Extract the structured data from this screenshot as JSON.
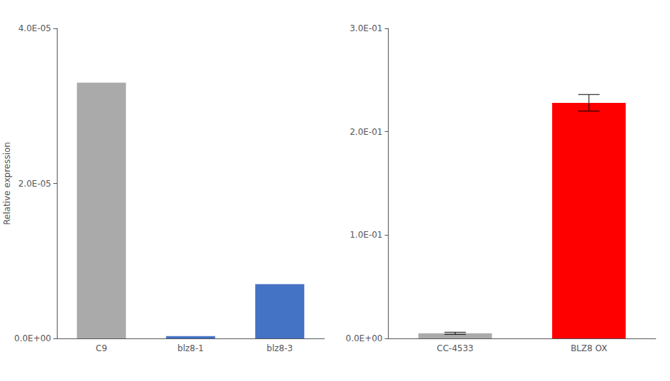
{
  "chart_data": [
    {
      "type": "bar",
      "categories": [
        "C9",
        "blz8-1",
        "blz8-3"
      ],
      "values": [
        3.3e-05,
        3e-07,
        7e-06
      ],
      "colors": [
        "#aaaaaa",
        "#4472c4",
        "#4472c4"
      ],
      "ylabel": "Relative expression",
      "ylim": [
        0,
        4e-05
      ],
      "yticks": [
        {
          "value": 0,
          "label": "0.0E+00"
        },
        {
          "value": 2e-05,
          "label": "2.0E-05"
        },
        {
          "value": 4e-05,
          "label": "4.0E-05"
        }
      ],
      "grid": false
    },
    {
      "type": "bar",
      "categories": [
        "CC-4533",
        "BLZ8 OX"
      ],
      "values": [
        0.005,
        0.228
      ],
      "colors": [
        "#aaaaaa",
        "#ff0000"
      ],
      "error_bars": [
        0.001,
        0.008
      ],
      "ylim": [
        0,
        0.3
      ],
      "yticks": [
        {
          "value": 0,
          "label": "0.0E+00"
        },
        {
          "value": 0.1,
          "label": "1.0E-01"
        },
        {
          "value": 0.2,
          "label": "2.0E-01"
        },
        {
          "value": 0.3,
          "label": "3.0E-01"
        }
      ],
      "grid": false
    }
  ]
}
